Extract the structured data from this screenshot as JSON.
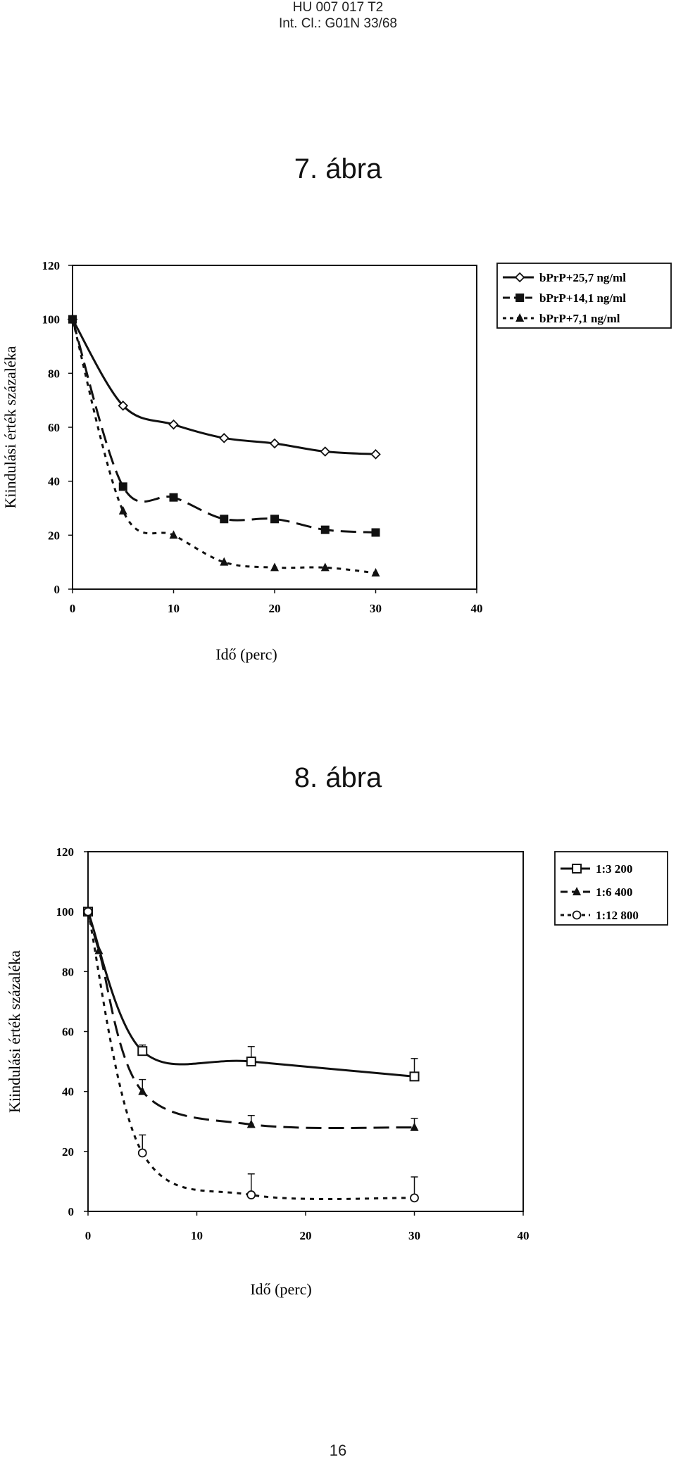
{
  "header": {
    "line1": "HU 007 017 T2",
    "line2": "Int. Cl.: G01N 33/68"
  },
  "figures": [
    {
      "title": "7. ábra"
    },
    {
      "title": "8. ábra"
    }
  ],
  "page_number": "16",
  "chart_data": [
    {
      "type": "line",
      "title": "7. ábra",
      "xlabel": "Idő (perc)",
      "ylabel": "Kiindulási érték százaléka",
      "xlim": [
        0,
        40
      ],
      "ylim": [
        0,
        120
      ],
      "xticks": [
        "0",
        "10",
        "20",
        "30",
        "40"
      ],
      "yticks": [
        "0",
        "20",
        "40",
        "60",
        "80",
        "100",
        "120"
      ],
      "legend_position": "right",
      "grid": false,
      "series": [
        {
          "name": "bPrP+25,7 ng/ml",
          "marker": "diamond-open",
          "dash": "solid",
          "x": [
            0,
            5,
            10,
            15,
            20,
            25,
            30
          ],
          "y": [
            100,
            68,
            61,
            56,
            54,
            51,
            50
          ]
        },
        {
          "name": "bPrP+14,1 ng/ml",
          "marker": "square-filled",
          "dash": "long-dash",
          "x": [
            0,
            5,
            10,
            15,
            20,
            25,
            30
          ],
          "y": [
            100,
            38,
            34,
            26,
            26,
            22,
            21
          ]
        },
        {
          "name": "bPrP+7,1 ng/ml",
          "marker": "triangle-filled",
          "dash": "short-dash",
          "x": [
            0,
            5,
            10,
            15,
            20,
            25,
            30
          ],
          "y": [
            100,
            29,
            20,
            10,
            8,
            8,
            6
          ]
        }
      ]
    },
    {
      "type": "line",
      "title": "8. ábra",
      "xlabel": "Idő (perc)",
      "ylabel": "Kiindulási érték százaléka",
      "xlim": [
        0,
        40
      ],
      "ylim": [
        0,
        120
      ],
      "xticks": [
        "0",
        "10",
        "20",
        "30",
        "40"
      ],
      "yticks": [
        "0",
        "20",
        "40",
        "60",
        "80",
        "100",
        "120"
      ],
      "legend_position": "right",
      "grid": false,
      "series": [
        {
          "name": "1:3 200",
          "marker": "square-open",
          "dash": "solid",
          "x": [
            0,
            5,
            15,
            30
          ],
          "y": [
            100,
            53.5,
            50,
            45
          ],
          "err": [
            0,
            2,
            5,
            6
          ]
        },
        {
          "name": "1:6 400",
          "marker": "triangle-filled",
          "dash": "long-dash",
          "x": [
            0,
            1,
            5,
            15,
            30
          ],
          "y": [
            100,
            87,
            40,
            29,
            28
          ],
          "err": [
            0,
            0,
            4,
            3,
            3
          ]
        },
        {
          "name": "1:12 800",
          "marker": "circle-open",
          "dash": "short-dash",
          "x": [
            0,
            5,
            15,
            30
          ],
          "y": [
            100,
            19.5,
            5.5,
            4.5
          ],
          "err": [
            0,
            6,
            7,
            7
          ]
        }
      ]
    }
  ]
}
